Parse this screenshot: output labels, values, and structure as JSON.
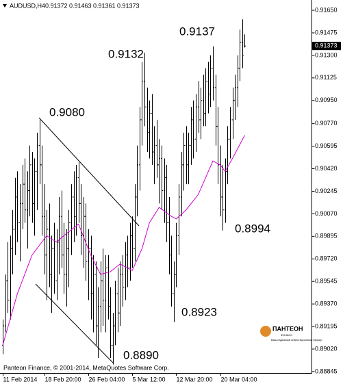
{
  "chart_data": {
    "type": "ohlc",
    "title": "AUDUSD,H4",
    "ylim": [
      0.88834,
      0.91714
    ],
    "yticks": [
      {
        "value": 0.9165,
        "label": "0.91650"
      },
      {
        "value": 0.91475,
        "label": "0.91475"
      },
      {
        "value": 0.913,
        "label": "0.91300"
      },
      {
        "value": 0.91125,
        "label": "0.91125"
      },
      {
        "value": 0.9095,
        "label": "0.90950"
      },
      {
        "value": 0.9077,
        "label": "0.90770"
      },
      {
        "value": 0.90595,
        "label": "0.90595"
      },
      {
        "value": 0.9042,
        "label": "0.90420"
      },
      {
        "value": 0.90245,
        "label": "0.90245"
      },
      {
        "value": 0.9007,
        "label": "0.90070"
      },
      {
        "value": 0.89895,
        "label": "0.89895"
      },
      {
        "value": 0.8972,
        "label": "0.89720"
      },
      {
        "value": 0.89545,
        "label": "0.89545"
      },
      {
        "value": 0.8937,
        "label": "0.89370"
      },
      {
        "value": 0.89195,
        "label": "0.89195"
      },
      {
        "value": 0.8902,
        "label": "0.89020"
      },
      {
        "value": 0.88845,
        "label": "0.88845"
      }
    ],
    "xticks": [
      {
        "value": 0,
        "label": "11 Feb 2014"
      },
      {
        "value": 17,
        "label": "18 Feb 20:00"
      },
      {
        "value": 35,
        "label": "26 Feb 04:00"
      },
      {
        "value": 53,
        "label": "5 Mar 12:00"
      },
      {
        "value": 71,
        "label": "12 Mar 20:00"
      },
      {
        "value": 89,
        "label": "20 Mar 04:00"
      }
    ],
    "color": "#000000",
    "bars": [
      [
        0.8905,
        0.8925,
        0.8898,
        0.892
      ],
      [
        0.892,
        0.896,
        0.8915,
        0.8955
      ],
      [
        0.8955,
        0.8985,
        0.893,
        0.894
      ],
      [
        0.894,
        0.899,
        0.8925,
        0.898
      ],
      [
        0.898,
        0.901,
        0.896,
        0.8995
      ],
      [
        0.8995,
        0.9035,
        0.8975,
        0.902
      ],
      [
        0.902,
        0.904,
        0.8985,
        0.9
      ],
      [
        0.9,
        0.903,
        0.897,
        0.9015
      ],
      [
        0.9015,
        0.9045,
        0.8995,
        0.903
      ],
      [
        0.903,
        0.905,
        0.9,
        0.901
      ],
      [
        0.901,
        0.904,
        0.898,
        0.9025
      ],
      [
        0.9025,
        0.906,
        0.9005,
        0.9045
      ],
      [
        0.9045,
        0.9055,
        0.9,
        0.9015
      ],
      [
        0.9015,
        0.905,
        0.899,
        0.904
      ],
      [
        0.904,
        0.907,
        0.901,
        0.906
      ],
      [
        0.906,
        0.908,
        0.903,
        0.9045
      ],
      [
        0.9045,
        0.906,
        0.899,
        0.9005
      ],
      [
        0.9005,
        0.903,
        0.896,
        0.8975
      ],
      [
        0.8975,
        0.901,
        0.894,
        0.8995
      ],
      [
        0.8995,
        0.9015,
        0.895,
        0.896
      ],
      [
        0.896,
        0.899,
        0.893,
        0.898
      ],
      [
        0.898,
        0.9,
        0.8945,
        0.8955
      ],
      [
        0.8955,
        0.8995,
        0.894,
        0.8985
      ],
      [
        0.8985,
        0.902,
        0.896,
        0.9005
      ],
      [
        0.9005,
        0.9025,
        0.8965,
        0.8975
      ],
      [
        0.8975,
        0.9,
        0.8945,
        0.896
      ],
      [
        0.896,
        0.8995,
        0.8935,
        0.898
      ],
      [
        0.898,
        0.901,
        0.895,
        0.9
      ],
      [
        0.9,
        0.903,
        0.8975,
        0.902
      ],
      [
        0.902,
        0.904,
        0.8985,
        0.9005
      ],
      [
        0.9005,
        0.9045,
        0.899,
        0.9035
      ],
      [
        0.9035,
        0.9047,
        0.9,
        0.9015
      ],
      [
        0.9015,
        0.903,
        0.8975,
        0.899
      ],
      [
        0.899,
        0.902,
        0.8965,
        0.9005
      ],
      [
        0.9005,
        0.9015,
        0.8955,
        0.897
      ],
      [
        0.897,
        0.8995,
        0.894,
        0.898
      ],
      [
        0.898,
        0.899,
        0.8925,
        0.8945
      ],
      [
        0.8945,
        0.8975,
        0.8915,
        0.896
      ],
      [
        0.896,
        0.897,
        0.8905,
        0.892
      ],
      [
        0.892,
        0.895,
        0.8895,
        0.8935
      ],
      [
        0.8935,
        0.897,
        0.8915,
        0.8955
      ],
      [
        0.8955,
        0.898,
        0.892,
        0.894
      ],
      [
        0.894,
        0.8975,
        0.8915,
        0.8965
      ],
      [
        0.8965,
        0.8975,
        0.8925,
        0.8935
      ],
      [
        0.8935,
        0.895,
        0.8895,
        0.8905
      ],
      [
        0.8905,
        0.893,
        0.889,
        0.892
      ],
      [
        0.892,
        0.8955,
        0.8905,
        0.8945
      ],
      [
        0.8945,
        0.8965,
        0.8915,
        0.893
      ],
      [
        0.893,
        0.897,
        0.892,
        0.896
      ],
      [
        0.896,
        0.8975,
        0.8935,
        0.895
      ],
      [
        0.895,
        0.8985,
        0.894,
        0.8975
      ],
      [
        0.8975,
        0.899,
        0.895,
        0.8965
      ],
      [
        0.8965,
        0.9,
        0.8955,
        0.899
      ],
      [
        0.899,
        0.9005,
        0.8965,
        0.898
      ],
      [
        0.898,
        0.903,
        0.897,
        0.902
      ],
      [
        0.902,
        0.906,
        0.9005,
        0.9045
      ],
      [
        0.9045,
        0.909,
        0.9025,
        0.908
      ],
      [
        0.908,
        0.9125,
        0.906,
        0.911
      ],
      [
        0.911,
        0.9132,
        0.9075,
        0.909
      ],
      [
        0.909,
        0.9105,
        0.9055,
        0.907
      ],
      [
        0.907,
        0.9095,
        0.905,
        0.9085
      ],
      [
        0.9085,
        0.91,
        0.9045,
        0.9055
      ],
      [
        0.9055,
        0.9075,
        0.903,
        0.906
      ],
      [
        0.906,
        0.908,
        0.9035,
        0.9045
      ],
      [
        0.9045,
        0.9065,
        0.9015,
        0.905
      ],
      [
        0.905,
        0.906,
        0.901,
        0.9025
      ],
      [
        0.9025,
        0.905,
        0.9,
        0.9035
      ],
      [
        0.9035,
        0.9045,
        0.8985,
        0.9
      ],
      [
        0.9,
        0.902,
        0.896,
        0.8975
      ],
      [
        0.8975,
        0.899,
        0.8935,
        0.8945
      ],
      [
        0.8945,
        0.897,
        0.8923,
        0.896
      ],
      [
        0.896,
        0.9,
        0.895,
        0.899
      ],
      [
        0.899,
        0.903,
        0.8975,
        0.902
      ],
      [
        0.902,
        0.9055,
        0.9005,
        0.9045
      ],
      [
        0.9045,
        0.907,
        0.9025,
        0.906
      ],
      [
        0.906,
        0.9075,
        0.903,
        0.9045
      ],
      [
        0.9045,
        0.907,
        0.903,
        0.906
      ],
      [
        0.906,
        0.909,
        0.9045,
        0.908
      ],
      [
        0.908,
        0.9095,
        0.905,
        0.9065
      ],
      [
        0.9065,
        0.91,
        0.9055,
        0.909
      ],
      [
        0.909,
        0.911,
        0.907,
        0.908
      ],
      [
        0.908,
        0.9105,
        0.9065,
        0.9095
      ],
      [
        0.9095,
        0.9115,
        0.9075,
        0.9085
      ],
      [
        0.9085,
        0.912,
        0.9075,
        0.911
      ],
      [
        0.911,
        0.9125,
        0.9085,
        0.91
      ],
      [
        0.91,
        0.913,
        0.909,
        0.912
      ],
      [
        0.912,
        0.9137,
        0.9095,
        0.9105
      ],
      [
        0.9105,
        0.9115,
        0.906,
        0.9075
      ],
      [
        0.9075,
        0.909,
        0.903,
        0.9045
      ],
      [
        0.9045,
        0.906,
        0.9005,
        0.902
      ],
      [
        0.902,
        0.9045,
        0.8994,
        0.901
      ],
      [
        0.901,
        0.905,
        0.9,
        0.904
      ],
      [
        0.904,
        0.9075,
        0.903,
        0.9065
      ],
      [
        0.9065,
        0.909,
        0.905,
        0.908
      ],
      [
        0.908,
        0.9105,
        0.9065,
        0.9095
      ],
      [
        0.9095,
        0.9115,
        0.908,
        0.9105
      ],
      [
        0.9105,
        0.913,
        0.909,
        0.912
      ],
      [
        0.912,
        0.915,
        0.911,
        0.914
      ],
      [
        0.914,
        0.9158,
        0.912,
        0.913
      ],
      [
        0.91372,
        0.91463,
        0.91361,
        0.91373
      ]
    ],
    "ma": {
      "color": "#d000d0",
      "x": [
        0,
        6,
        12,
        18,
        22,
        25,
        31,
        36,
        40,
        44,
        48,
        53,
        57,
        60,
        64,
        69,
        71,
        75,
        80,
        86,
        89,
        91,
        94,
        99
      ],
      "values": [
        0.8905,
        0.8945,
        0.8975,
        0.899,
        0.8985,
        0.899,
        0.8999,
        0.8975,
        0.896,
        0.8962,
        0.8968,
        0.8963,
        0.898,
        0.9,
        0.9012,
        0.9005,
        0.9003,
        0.901,
        0.9022,
        0.9048,
        0.9045,
        0.904,
        0.905,
        0.9068
      ]
    },
    "last_price": {
      "value": 0.91373,
      "label": "0.91373"
    },
    "annotations": [
      "0.9080",
      "0.9132",
      "0.9137",
      "0.8994",
      "0.8923",
      "0.8890"
    ],
    "copyright": "Panteon Finance, © 2001-2014, MetaQuotes Software Corp.",
    "logo": {
      "name": "ПАНТЕОН",
      "sub": "ФИНАНС",
      "slogan": "Ваш надежный инвестиционный брокер"
    }
  }
}
